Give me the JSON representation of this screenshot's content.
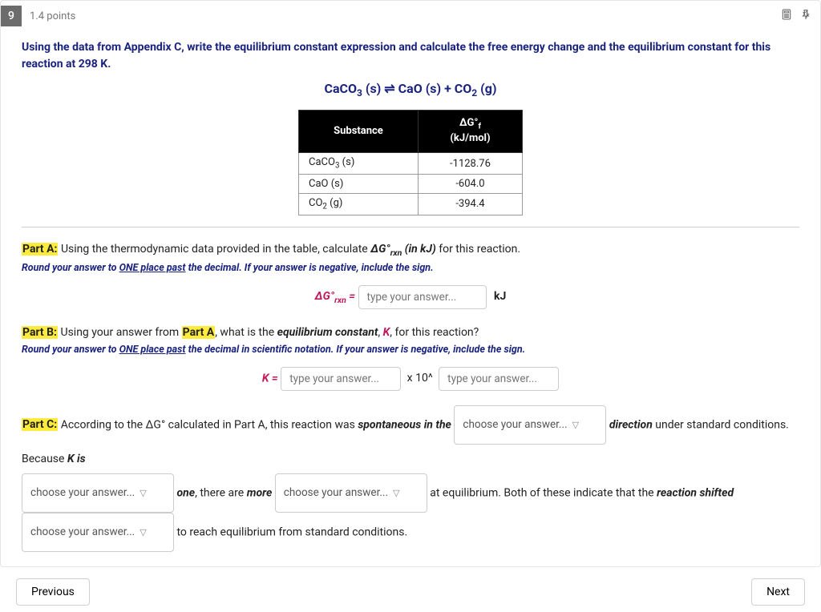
{
  "question": {
    "number": "9",
    "points": "1.4 points",
    "prompt": "Using the data from Appendix C, write the equilibrium constant expression and calculate the free energy change and the equilibrium constant for this reaction at 298 K.",
    "equation_html": "CaCO<sub>3</sub> (s) ⇌ CaO (s) + CO<sub>2</sub> (g)"
  },
  "table": {
    "headers": {
      "substance": "Substance",
      "value": "ΔG°f\n(kJ/mol)"
    },
    "rows": [
      {
        "sub_html": "CaCO<sub>3</sub> (s)",
        "val": "-1128.76"
      },
      {
        "sub_html": "CaO (s)",
        "val": "-604.0"
      },
      {
        "sub_html": "CO<sub>2</sub> (g)",
        "val": "-394.4"
      }
    ]
  },
  "partA": {
    "label": "Part A:",
    "text_before": " Using the thermodynamic data provided in the table, calculate ",
    "term_html": "<b><i>ΔG°<sub>rxn</sub> (in kJ)</i></b>",
    "text_after": " for this reaction.",
    "hint_html": "Round your answer to <span class=\"u\">ONE place past</span> the decimal. If your answer is negative, include the sign.",
    "field_label_html": "ΔG°<sub>rxn</sub> =",
    "placeholder": "type your answer...",
    "unit": "kJ"
  },
  "partB": {
    "label": "Part B:",
    "text_before": " Using your answer from ",
    "ref": "Part A",
    "text_mid": ", what is the ",
    "term_html": "<b><i>equilibrium constant</i></b>, <b><i style=\"color:#c2185b\">K</i></b>",
    "text_after": ", for this reaction?",
    "hint_html": "Round your answer to <span class=\"u\">ONE place past</span> the decimal in scientific notation. If your answer is negative, include the sign.",
    "k_label": "K =",
    "placeholder1": "type your answer...",
    "x10": "x 10^",
    "placeholder2": "type your answer..."
  },
  "partC": {
    "label": "Part C:",
    "t1": " According to the ΔG° calculated in Part A, this reaction was ",
    "spon": "spontaneous in the",
    "sel_placeholder": "choose your answer...",
    "t2_html": " <b><i>direction</i></b> under standard conditions. Because <b><i>K is</i></b>",
    "t3_html": " <b><i>one</i></b>, there are <b><i>more</i></b> ",
    "t4_html": " at equilibrium. Both of these indicate that the <b><i>reaction shifted</i></b>",
    "t5": " to reach equilibrium from standard conditions."
  },
  "nav": {
    "prev": "Previous",
    "next": "Next"
  }
}
